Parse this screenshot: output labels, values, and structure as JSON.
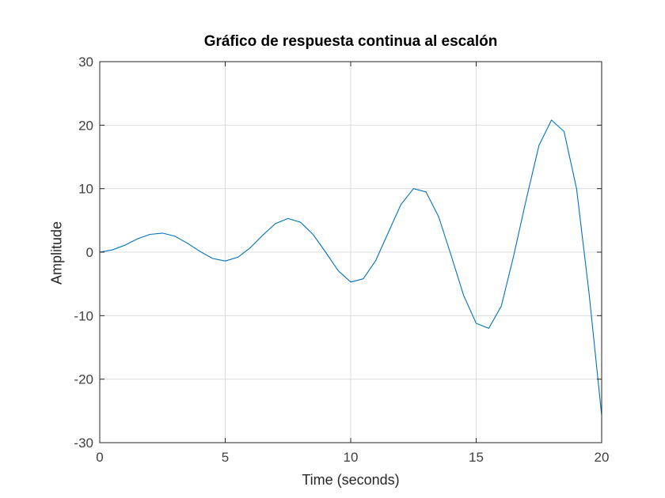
{
  "chart_data": {
    "type": "line",
    "title": "Gráfico de respuesta continua al escalón",
    "xlabel": "Time (seconds)",
    "ylabel": "Amplitude",
    "xlim": [
      0,
      20
    ],
    "ylim": [
      -30,
      30
    ],
    "xticks": [
      0,
      5,
      10,
      15,
      20
    ],
    "xtick_labels": [
      "0",
      "5",
      "10",
      "15",
      "20"
    ],
    "yticks": [
      -30,
      -20,
      -10,
      0,
      10,
      20,
      30
    ],
    "ytick_labels": [
      "-30",
      "-20",
      "-10",
      "0",
      "10",
      "20",
      "30"
    ],
    "grid": true,
    "line_color": "#0072BD",
    "grid_color": "#dcdcdc",
    "series": [
      {
        "x": [
          0,
          0.5,
          1,
          1.5,
          2,
          2.5,
          3,
          3.5,
          4,
          4.5,
          5,
          5.5,
          6,
          6.5,
          7,
          7.5,
          8,
          8.5,
          9,
          9.5,
          10,
          10.5,
          11,
          11.5,
          12,
          12.5,
          13,
          13.5,
          14,
          14.5,
          15,
          15.5,
          16,
          16.5,
          17,
          17.5,
          18,
          18.5,
          19,
          19.5,
          20
        ],
        "y": [
          0,
          0.35,
          1.1,
          2.1,
          2.8,
          3.0,
          2.5,
          1.4,
          0.1,
          -1.0,
          -1.4,
          -0.8,
          0.7,
          2.7,
          4.5,
          5.3,
          4.7,
          2.8,
          0.0,
          -2.9,
          -4.7,
          -4.2,
          -1.3,
          3.1,
          7.5,
          10.0,
          9.5,
          5.6,
          -0.5,
          -6.8,
          -11.2,
          -12.0,
          -8.5,
          -0.5,
          8.4,
          16.8,
          20.8,
          19.0,
          10.0,
          -6.5,
          -25.7
        ]
      }
    ]
  }
}
